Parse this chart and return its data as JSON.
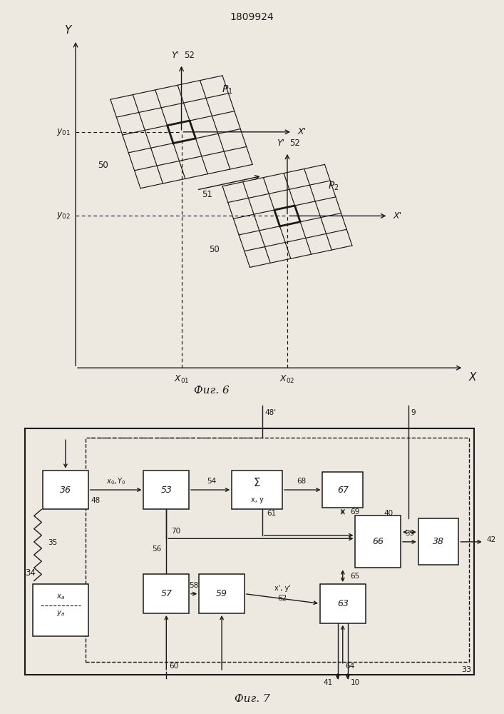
{
  "title": "1809924",
  "bg_color": "#ede9e0",
  "line_color": "#1a1a1a",
  "fig6_caption": "Фиг. 6",
  "fig7_caption": "Фиг. 7"
}
